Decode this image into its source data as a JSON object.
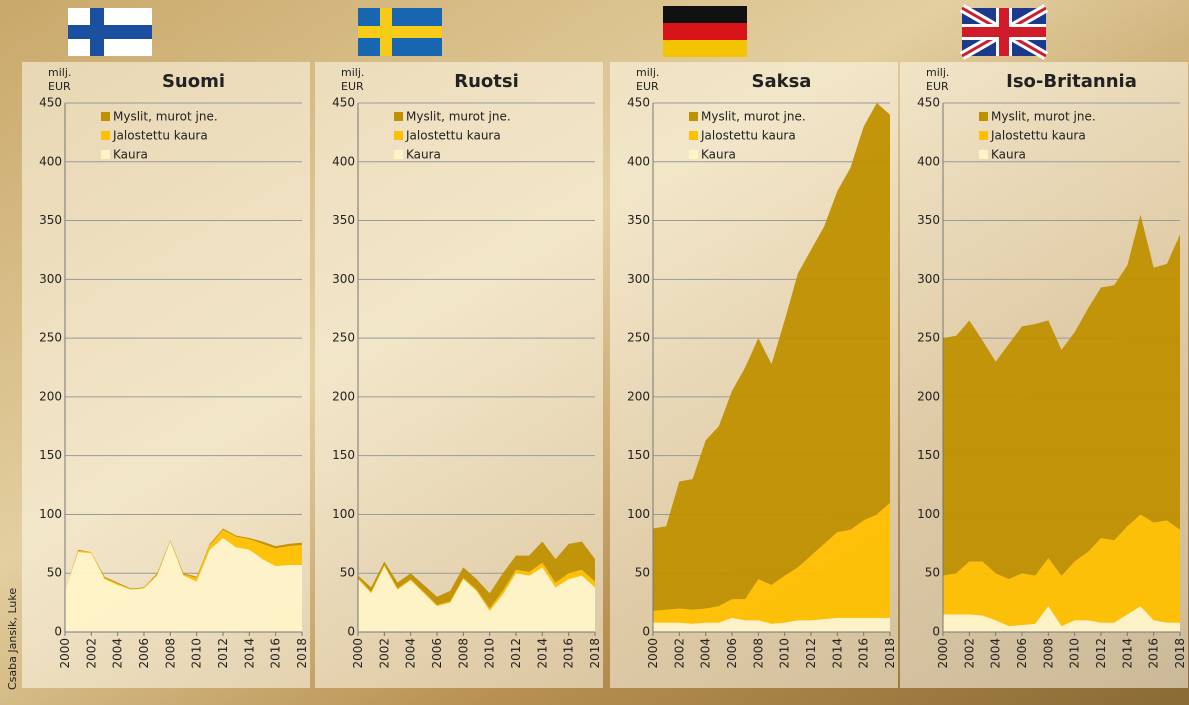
{
  "credit": "Csaba Jansik, Luke",
  "chart_data": [
    {
      "type": "stacked_area",
      "title": "Suomi",
      "ylabel": "milj. EUR",
      "x": [
        2000,
        2001,
        2002,
        2003,
        2004,
        2005,
        2006,
        2007,
        2008,
        2009,
        2010,
        2011,
        2012,
        2013,
        2014,
        2015,
        2016,
        2017,
        2018
      ],
      "xlim": [
        2000,
        2018
      ],
      "xticks": [
        2000,
        2002,
        2004,
        2006,
        2008,
        2010,
        2012,
        2014,
        2016,
        2018
      ],
      "ylim": [
        0,
        450
      ],
      "yticks": [
        0,
        50,
        100,
        150,
        200,
        250,
        300,
        350,
        400,
        450
      ],
      "grid": true,
      "series": [
        {
          "name": "Kaura",
          "color": "#fff3c8",
          "values": [
            35,
            68,
            67,
            45,
            40,
            36,
            37,
            48,
            77,
            48,
            43,
            70,
            80,
            72,
            70,
            62,
            56,
            57,
            57
          ]
        },
        {
          "name": "Jalostettu kaura",
          "color": "#ffc000",
          "values": [
            0,
            1,
            1,
            1,
            1,
            0.5,
            0.5,
            1,
            0.5,
            1,
            3,
            4,
            7,
            9,
            9,
            13,
            15,
            16,
            17
          ]
        },
        {
          "name": "Myslit, murot jne.",
          "color": "#bf9000",
          "values": [
            0,
            1,
            0,
            1,
            1,
            0.5,
            0.5,
            1,
            0.5,
            1,
            1,
            1,
            1,
            1,
            1,
            2,
            2,
            2,
            2
          ]
        }
      ]
    },
    {
      "type": "stacked_area",
      "title": "Ruotsi",
      "ylabel": "milj. EUR",
      "x": [
        2000,
        2001,
        2002,
        2003,
        2004,
        2005,
        2006,
        2007,
        2008,
        2009,
        2010,
        2011,
        2012,
        2013,
        2014,
        2015,
        2016,
        2017,
        2018
      ],
      "xlim": [
        2000,
        2018
      ],
      "xticks": [
        2000,
        2002,
        2004,
        2006,
        2008,
        2010,
        2012,
        2014,
        2016,
        2018
      ],
      "ylim": [
        0,
        450
      ],
      "yticks": [
        0,
        50,
        100,
        150,
        200,
        250,
        300,
        350,
        400,
        450
      ],
      "grid": true,
      "series": [
        {
          "name": "Kaura",
          "color": "#fff3c8",
          "values": [
            45,
            33,
            56,
            36,
            44,
            33,
            22,
            25,
            45,
            35,
            18,
            32,
            50,
            48,
            55,
            38,
            45,
            48,
            38
          ]
        },
        {
          "name": "Jalostettu kaura",
          "color": "#ffc000",
          "values": [
            1,
            1,
            1,
            1,
            1,
            1,
            1,
            1,
            1,
            1,
            2,
            3,
            3,
            3,
            4,
            4,
            5,
            5,
            5
          ]
        },
        {
          "name": "Myslit, murot jne.",
          "color": "#bf9000",
          "values": [
            2,
            4,
            3,
            5,
            5,
            6,
            7,
            9,
            9,
            9,
            13,
            15,
            12,
            14,
            18,
            20,
            25,
            24,
            19
          ]
        }
      ]
    },
    {
      "type": "stacked_area",
      "title": "Saksa",
      "ylabel": "milj. EUR",
      "x": [
        2000,
        2001,
        2002,
        2003,
        2004,
        2005,
        2006,
        2007,
        2008,
        2009,
        2010,
        2011,
        2012,
        2013,
        2014,
        2015,
        2016,
        2017,
        2018
      ],
      "xlim": [
        2000,
        2018
      ],
      "xticks": [
        2000,
        2002,
        2004,
        2006,
        2008,
        2010,
        2012,
        2014,
        2016,
        2018
      ],
      "ylim": [
        0,
        450
      ],
      "yticks": [
        0,
        50,
        100,
        150,
        200,
        250,
        300,
        350,
        400,
        450
      ],
      "grid": true,
      "series": [
        {
          "name": "Kaura",
          "color": "#fff3c8",
          "values": [
            8,
            8,
            8,
            7,
            8,
            8,
            12,
            10,
            10,
            7,
            8,
            10,
            10,
            11,
            12,
            12,
            12,
            12,
            12
          ]
        },
        {
          "name": "Jalostettu kaura",
          "color": "#ffc000",
          "values": [
            10,
            11,
            12,
            12,
            12,
            14,
            16,
            18,
            35,
            33,
            40,
            45,
            55,
            64,
            73,
            75,
            83,
            88,
            98
          ]
        },
        {
          "name": "Myslit, murot jne.",
          "color": "#bf9000",
          "values": [
            70,
            71,
            108,
            111,
            143,
            153,
            177,
            197,
            205,
            188,
            217,
            250,
            260,
            270,
            290,
            308,
            335,
            350,
            330
          ]
        }
      ]
    },
    {
      "type": "stacked_area",
      "title": "Iso-Britannia",
      "ylabel": "milj. EUR",
      "x": [
        2000,
        2001,
        2002,
        2003,
        2004,
        2005,
        2006,
        2007,
        2008,
        2009,
        2010,
        2011,
        2012,
        2013,
        2014,
        2015,
        2016,
        2017,
        2018
      ],
      "xlim": [
        2000,
        2018
      ],
      "xticks": [
        2000,
        2002,
        2004,
        2006,
        2008,
        2010,
        2012,
        2014,
        2016,
        2018
      ],
      "ylim": [
        0,
        450
      ],
      "yticks": [
        0,
        50,
        100,
        150,
        200,
        250,
        300,
        350,
        400,
        450
      ],
      "grid": true,
      "series": [
        {
          "name": "Kaura",
          "color": "#fff3c8",
          "values": [
            15,
            15,
            15,
            14,
            10,
            5,
            6,
            7,
            22,
            5,
            10,
            10,
            8,
            8,
            15,
            22,
            10,
            8,
            8
          ]
        },
        {
          "name": "Jalostettu kaura",
          "color": "#ffc000",
          "values": [
            33,
            35,
            45,
            46,
            40,
            40,
            44,
            41,
            41,
            43,
            50,
            58,
            72,
            70,
            75,
            78,
            83,
            87,
            79
          ]
        },
        {
          "name": "Myslit, murot jne.",
          "color": "#bf9000",
          "values": [
            202,
            202,
            205,
            188,
            180,
            200,
            210,
            214,
            202,
            192,
            195,
            207,
            213,
            217,
            222,
            255,
            217,
            218,
            251
          ]
        }
      ]
    }
  ]
}
